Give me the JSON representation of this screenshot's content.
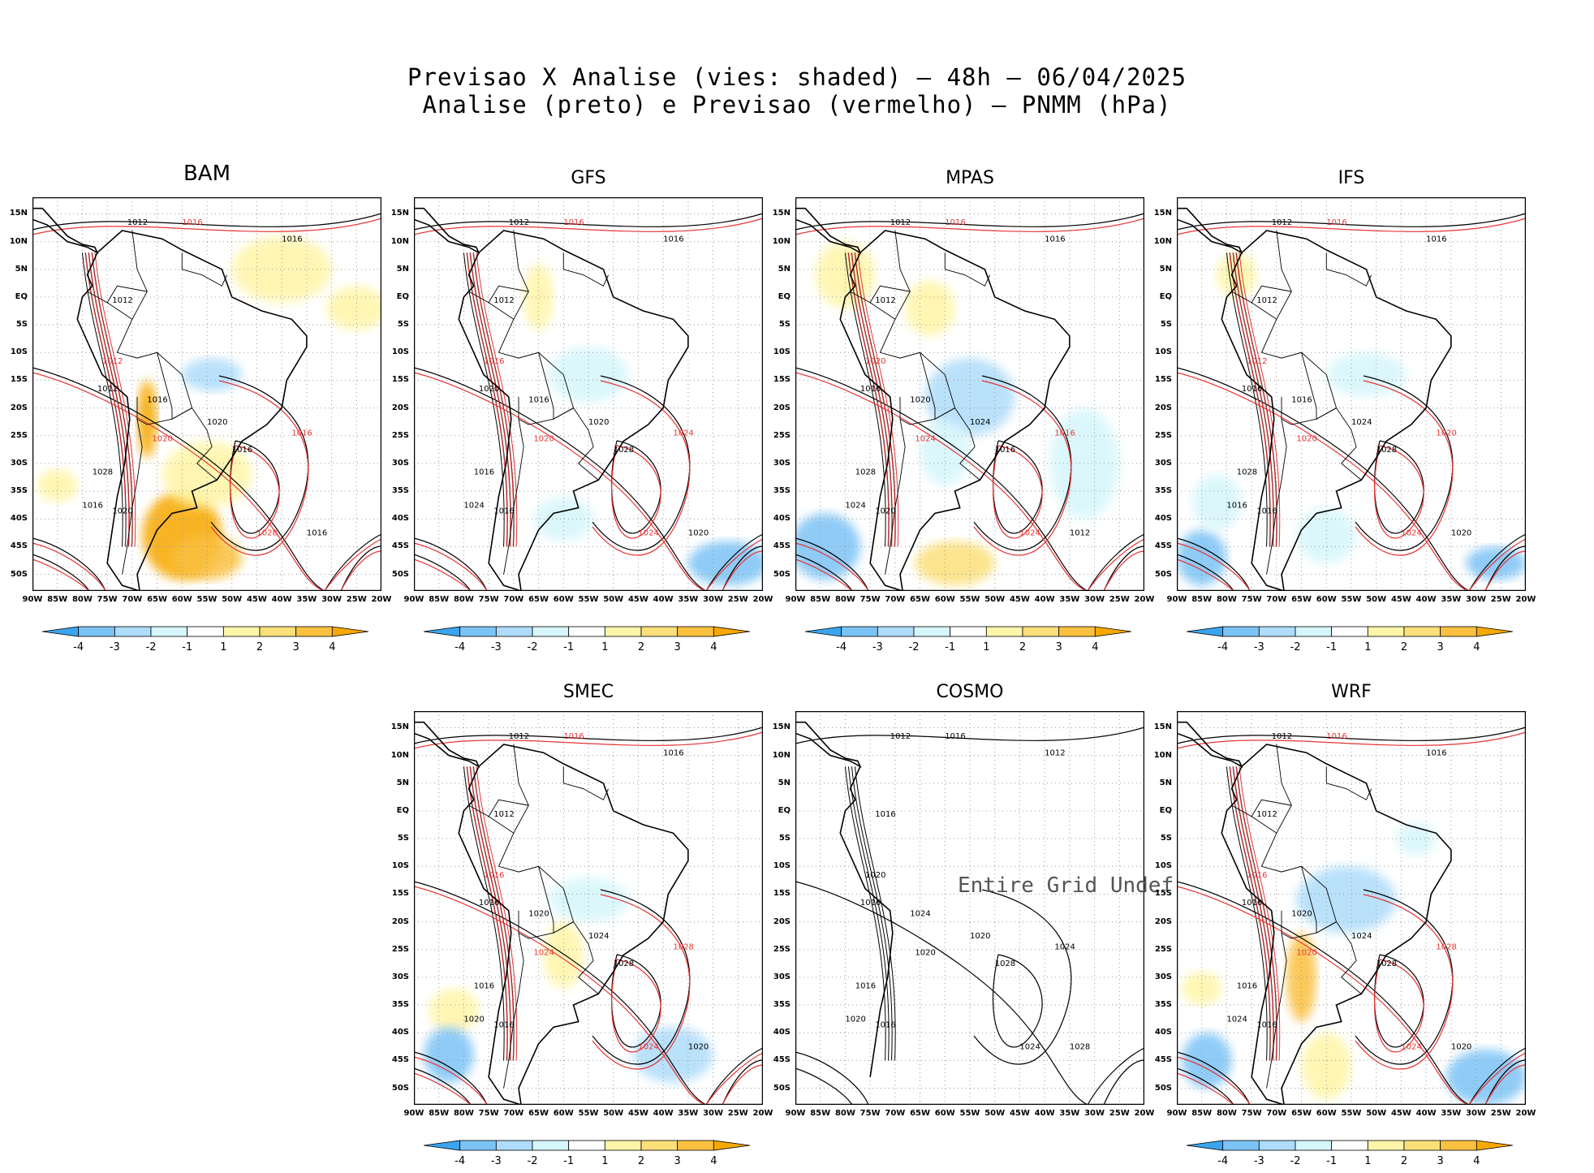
{
  "title_line1": "Previsao X Analise (vies: shaded) – 48h – 06/04/2025",
  "title_line2": "Analise (preto) e Previsao (vermelho) – PNMM (hPa)",
  "lat_labels": [
    "15N",
    "10N",
    "5N",
    "EQ",
    "5S",
    "10S",
    "15S",
    "20S",
    "25S",
    "30S",
    "35S",
    "40S",
    "45S",
    "50S"
  ],
  "lon_labels": [
    "90W",
    "85W",
    "80W",
    "75W",
    "70W",
    "65W",
    "60W",
    "55W",
    "50W",
    "45W",
    "40W",
    "35W",
    "30W",
    "25W",
    "20W"
  ],
  "colorbar_labels": [
    "-4",
    "-3",
    "-2",
    "-1",
    "1",
    "2",
    "3",
    "4"
  ],
  "colorbar_colors": [
    "#3aa5ee",
    "#7cc3f5",
    "#aedcfa",
    "#d6f6fb",
    "#ffffff",
    "#fff5a8",
    "#fbe07a",
    "#fac040",
    "#f7a800"
  ],
  "contour_black": "#000000",
  "contour_red": "#e83535",
  "undef_text": "Entire Grid Undef",
  "panels": [
    {
      "name": "BAM",
      "labels": [
        "1012",
        "1016",
        "1016",
        "1012",
        "1012",
        "1012",
        "1016",
        "1020",
        "1020",
        "1016",
        "1016",
        "1028",
        "1020",
        "1028",
        "1016",
        "1016"
      ]
    },
    {
      "name": "GFS",
      "labels": [
        "1012",
        "1016",
        "1016",
        "1012",
        "1016",
        "1020",
        "1016",
        "1020",
        "1020",
        "1028",
        "1024",
        "1016",
        "1016",
        "1024",
        "1020",
        "1024"
      ]
    },
    {
      "name": "MPAS",
      "labels": [
        "1012",
        "1016",
        "1016",
        "1012",
        "1020",
        "1016",
        "1020",
        "1024",
        "1024",
        "1016",
        "1016",
        "1028",
        "1020",
        "1024",
        "1012",
        "1024"
      ]
    },
    {
      "name": "IFS",
      "labels": [
        "1012",
        "1016",
        "1016",
        "1012",
        "1012",
        "1016",
        "1016",
        "1020",
        "1024",
        "1028",
        "1020",
        "1028",
        "1016",
        "1024",
        "1020",
        "1016"
      ]
    },
    {
      "name": "SMEC",
      "labels": [
        "1012",
        "1016",
        "1016",
        "1012",
        "1016",
        "1016",
        "1020",
        "1024",
        "1024",
        "1028",
        "1028",
        "1016",
        "1016",
        "1024",
        "1020",
        "1020"
      ]
    },
    {
      "name": "COSMO",
      "labels": [
        "1012",
        "1016",
        "1012",
        "1016",
        "1020",
        "1016",
        "1024",
        "1020",
        "1020",
        "1028",
        "1024",
        "1016",
        "1016",
        "1024",
        "1028",
        "1020"
      ]
    },
    {
      "name": "WRF",
      "labels": [
        "1012",
        "1016",
        "1016",
        "1012",
        "1016",
        "1016",
        "1020",
        "1020",
        "1024",
        "1028",
        "1028",
        "1016",
        "1016",
        "1024",
        "1020",
        "1024"
      ]
    }
  ]
}
